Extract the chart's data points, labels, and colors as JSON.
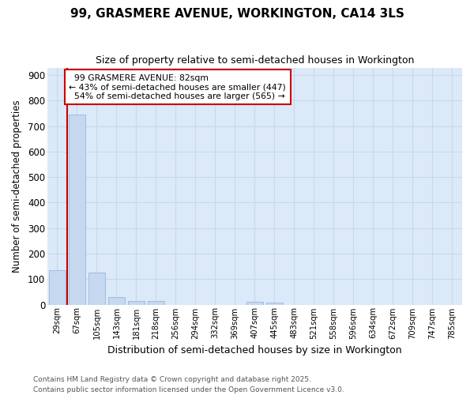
{
  "title": "99, GRASMERE AVENUE, WORKINGTON, CA14 3LS",
  "subtitle": "Size of property relative to semi-detached houses in Workington",
  "xlabel": "Distribution of semi-detached houses by size in Workington",
  "ylabel": "Number of semi-detached properties",
  "property_label": "99 GRASMERE AVENUE: 82sqm",
  "pct_smaller": 43,
  "pct_smaller_count": 447,
  "pct_larger": 54,
  "pct_larger_count": 565,
  "bar_color": "#c5d8f0",
  "bar_edge_color": "#a0bede",
  "vline_color": "#cc0000",
  "annotation_box_color": "#cc0000",
  "grid_color": "#c8d8ee",
  "background_color": "#dce9f8",
  "categories": [
    "29sqm",
    "67sqm",
    "105sqm",
    "143sqm",
    "181sqm",
    "218sqm",
    "256sqm",
    "294sqm",
    "332sqm",
    "369sqm",
    "407sqm",
    "445sqm",
    "483sqm",
    "521sqm",
    "558sqm",
    "596sqm",
    "634sqm",
    "672sqm",
    "709sqm",
    "747sqm",
    "785sqm"
  ],
  "values": [
    135,
    745,
    125,
    28,
    13,
    13,
    0,
    0,
    0,
    0,
    12,
    8,
    0,
    0,
    0,
    0,
    0,
    0,
    0,
    0,
    0
  ],
  "ylim": [
    0,
    930
  ],
  "yticks": [
    0,
    100,
    200,
    300,
    400,
    500,
    600,
    700,
    800,
    900
  ],
  "vline_x": 0.5,
  "footnote1": "Contains HM Land Registry data © Crown copyright and database right 2025.",
  "footnote2": "Contains public sector information licensed under the Open Government Licence v3.0."
}
